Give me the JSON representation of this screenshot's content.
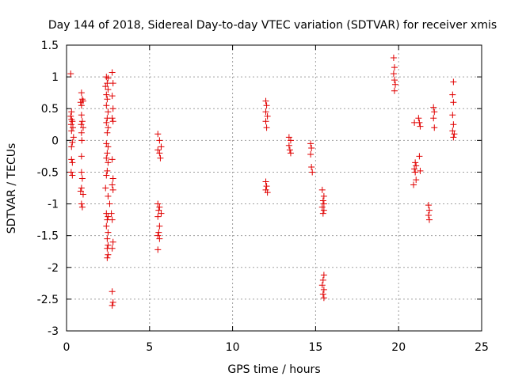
{
  "chart_data": {
    "type": "scatter",
    "title": "Day 144 of 2018, Sidereal Day-to-day VTEC variation (SDTVAR) for receiver xmis",
    "xlabel": "GPS time / hours",
    "ylabel": "SDTVAR / TECUs",
    "xlim": [
      0,
      25
    ],
    "ylim": [
      -3,
      1.5
    ],
    "xticks": [
      0,
      5,
      10,
      15,
      20,
      25
    ],
    "xtick_labels": [
      "0",
      "5",
      "10",
      "15",
      "20",
      "25"
    ],
    "yticks": [
      1.5,
      1,
      0.5,
      0,
      -0.5,
      -1,
      -1.5,
      -2,
      -2.5,
      -3
    ],
    "ytick_labels": [
      "1.5",
      "1",
      "0.5",
      "0",
      "-0.5",
      "-1",
      "-1.5",
      "-2",
      "-2.5",
      "-3"
    ],
    "grid": true,
    "marker": "+",
    "color": "#e00000",
    "series": [
      {
        "name": "SDTVAR",
        "points": [
          [
            0.25,
            1.05
          ],
          [
            0.3,
            0.45
          ],
          [
            0.25,
            0.38
          ],
          [
            0.3,
            0.33
          ],
          [
            0.35,
            0.3
          ],
          [
            0.28,
            0.25
          ],
          [
            0.38,
            0.2
          ],
          [
            0.3,
            0.15
          ],
          [
            0.42,
            0.05
          ],
          [
            0.35,
            -0.03
          ],
          [
            0.3,
            -0.1
          ],
          [
            0.3,
            -0.3
          ],
          [
            0.35,
            -0.35
          ],
          [
            0.28,
            -0.5
          ],
          [
            0.35,
            -0.55
          ],
          [
            0.9,
            0.75
          ],
          [
            0.95,
            0.65
          ],
          [
            0.85,
            0.6
          ],
          [
            0.9,
            0.55
          ],
          [
            1.0,
            0.62
          ],
          [
            0.9,
            0.4
          ],
          [
            0.95,
            0.3
          ],
          [
            0.88,
            0.25
          ],
          [
            1.0,
            0.2
          ],
          [
            0.9,
            0.12
          ],
          [
            0.92,
            0.0
          ],
          [
            0.9,
            -0.25
          ],
          [
            0.9,
            -0.5
          ],
          [
            0.95,
            -0.6
          ],
          [
            0.9,
            -0.75
          ],
          [
            0.85,
            -0.8
          ],
          [
            1.0,
            -0.85
          ],
          [
            0.9,
            -1.0
          ],
          [
            0.95,
            -1.05
          ],
          [
            2.4,
            1.0
          ],
          [
            2.5,
            0.98
          ],
          [
            2.45,
            0.9
          ],
          [
            2.35,
            0.85
          ],
          [
            2.5,
            0.8
          ],
          [
            2.4,
            0.72
          ],
          [
            2.45,
            0.65
          ],
          [
            2.4,
            0.55
          ],
          [
            2.5,
            0.45
          ],
          [
            2.45,
            0.35
          ],
          [
            2.4,
            0.28
          ],
          [
            2.5,
            0.2
          ],
          [
            2.45,
            0.12
          ],
          [
            2.4,
            -0.05
          ],
          [
            2.5,
            -0.1
          ],
          [
            2.45,
            -0.2
          ],
          [
            2.4,
            -0.28
          ],
          [
            2.5,
            -0.35
          ],
          [
            2.45,
            -0.48
          ],
          [
            2.4,
            -0.55
          ],
          [
            2.35,
            -0.75
          ],
          [
            2.5,
            -0.88
          ],
          [
            2.4,
            -1.15
          ],
          [
            2.5,
            -1.2
          ],
          [
            2.45,
            -1.25
          ],
          [
            2.4,
            -1.35
          ],
          [
            2.5,
            -1.45
          ],
          [
            2.45,
            -1.55
          ],
          [
            2.5,
            -1.65
          ],
          [
            2.45,
            -1.7
          ],
          [
            2.5,
            -1.8
          ],
          [
            2.45,
            -1.85
          ],
          [
            2.75,
            1.07
          ],
          [
            2.8,
            0.9
          ],
          [
            2.75,
            0.7
          ],
          [
            2.8,
            0.5
          ],
          [
            2.75,
            0.35
          ],
          [
            2.8,
            0.3
          ],
          [
            2.75,
            -0.3
          ],
          [
            2.8,
            -0.6
          ],
          [
            2.75,
            -0.7
          ],
          [
            2.8,
            -0.78
          ],
          [
            2.6,
            -1.0
          ],
          [
            2.7,
            -1.15
          ],
          [
            2.75,
            -1.25
          ],
          [
            2.8,
            -1.6
          ],
          [
            2.75,
            -1.7
          ],
          [
            2.75,
            -2.38
          ],
          [
            2.8,
            -2.55
          ],
          [
            2.75,
            -2.6
          ],
          [
            5.5,
            0.1
          ],
          [
            5.6,
            0.0
          ],
          [
            5.7,
            -0.1
          ],
          [
            5.5,
            -0.15
          ],
          [
            5.6,
            -0.2
          ],
          [
            5.65,
            -0.28
          ],
          [
            5.5,
            -1.0
          ],
          [
            5.6,
            -1.05
          ],
          [
            5.55,
            -1.1
          ],
          [
            5.7,
            -1.15
          ],
          [
            5.5,
            -1.2
          ],
          [
            5.6,
            -1.35
          ],
          [
            5.55,
            -1.45
          ],
          [
            5.5,
            -1.5
          ],
          [
            5.6,
            -1.55
          ],
          [
            5.5,
            -1.72
          ],
          [
            12.0,
            0.62
          ],
          [
            12.05,
            0.55
          ],
          [
            12.0,
            0.45
          ],
          [
            12.1,
            0.38
          ],
          [
            12.0,
            0.3
          ],
          [
            12.05,
            0.2
          ],
          [
            12.0,
            -0.65
          ],
          [
            12.05,
            -0.72
          ],
          [
            12.0,
            -0.78
          ],
          [
            12.1,
            -0.82
          ],
          [
            13.4,
            0.05
          ],
          [
            13.5,
            0.0
          ],
          [
            13.4,
            -0.08
          ],
          [
            13.45,
            -0.15
          ],
          [
            13.5,
            -0.2
          ],
          [
            14.7,
            -0.05
          ],
          [
            14.75,
            -0.12
          ],
          [
            14.7,
            -0.22
          ],
          [
            14.75,
            -0.42
          ],
          [
            14.8,
            -0.5
          ],
          [
            15.4,
            -0.78
          ],
          [
            15.5,
            -0.88
          ],
          [
            15.45,
            -0.95
          ],
          [
            15.5,
            -1.0
          ],
          [
            15.4,
            -1.05
          ],
          [
            15.5,
            -1.1
          ],
          [
            15.45,
            -1.15
          ],
          [
            15.5,
            -2.12
          ],
          [
            15.45,
            -2.2
          ],
          [
            15.4,
            -2.28
          ],
          [
            15.5,
            -2.35
          ],
          [
            15.45,
            -2.42
          ],
          [
            15.5,
            -2.48
          ],
          [
            19.7,
            1.3
          ],
          [
            19.75,
            1.15
          ],
          [
            19.7,
            1.05
          ],
          [
            19.75,
            0.95
          ],
          [
            19.8,
            0.88
          ],
          [
            19.75,
            0.78
          ],
          [
            20.95,
            0.28
          ],
          [
            21.0,
            -0.35
          ],
          [
            21.05,
            -0.4
          ],
          [
            20.95,
            -0.45
          ],
          [
            21.0,
            -0.5
          ],
          [
            21.05,
            -0.62
          ],
          [
            20.9,
            -0.7
          ],
          [
            21.2,
            0.35
          ],
          [
            21.25,
            0.28
          ],
          [
            21.3,
            0.22
          ],
          [
            21.25,
            -0.25
          ],
          [
            21.3,
            -0.48
          ],
          [
            21.8,
            -1.02
          ],
          [
            21.85,
            -1.1
          ],
          [
            21.8,
            -1.18
          ],
          [
            21.85,
            -1.25
          ],
          [
            22.1,
            0.52
          ],
          [
            22.15,
            0.45
          ],
          [
            22.1,
            0.35
          ],
          [
            22.15,
            0.2
          ],
          [
            23.3,
            0.92
          ],
          [
            23.25,
            0.72
          ],
          [
            23.3,
            0.6
          ],
          [
            23.25,
            0.4
          ],
          [
            23.3,
            0.25
          ],
          [
            23.25,
            0.15
          ],
          [
            23.35,
            0.1
          ],
          [
            23.3,
            0.05
          ]
        ]
      }
    ]
  }
}
